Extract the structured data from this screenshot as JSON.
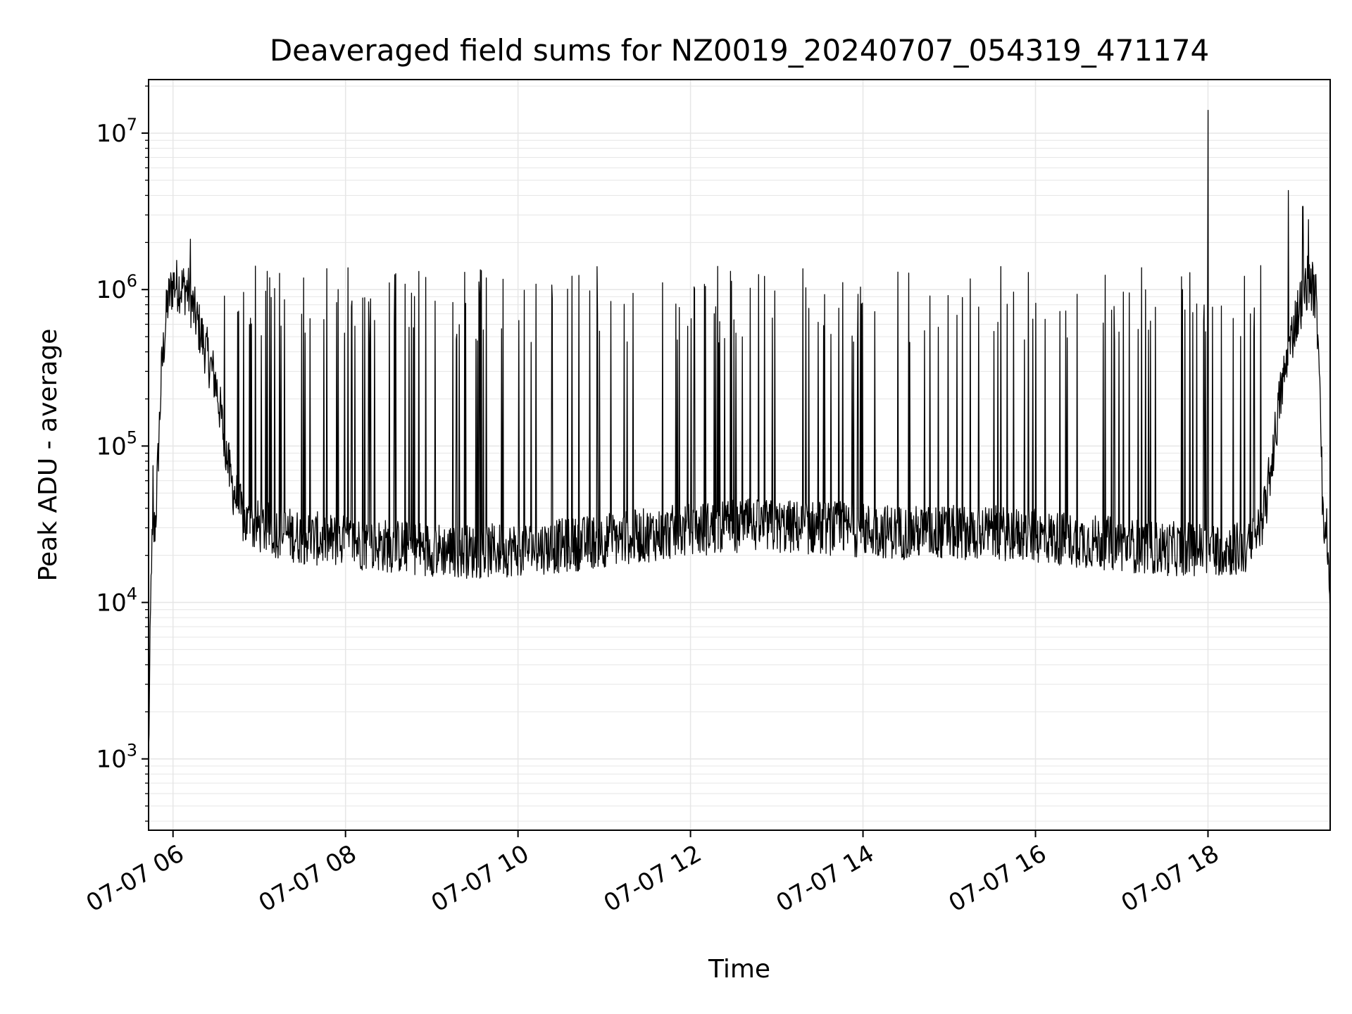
{
  "chart_data": {
    "type": "line",
    "title": "Deaveraged field sums for NZ0019_20240707_054319_471174",
    "xlabel": "Time",
    "ylabel": "Peak ADU - average",
    "xlim": [
      "2024-07-07 05:43",
      "2024-07-07 19:25"
    ],
    "ylim": [
      350,
      22000000
    ],
    "yscale": "log",
    "grid": true,
    "colors": {
      "line": "#000000",
      "grid": "#e6e6e6",
      "axes": "#000000"
    },
    "x_ticks": [
      {
        "t": "2024-07-07 06:00",
        "label": "07-07 06"
      },
      {
        "t": "2024-07-07 08:00",
        "label": "07-07 08"
      },
      {
        "t": "2024-07-07 10:00",
        "label": "07-07 10"
      },
      {
        "t": "2024-07-07 12:00",
        "label": "07-07 12"
      },
      {
        "t": "2024-07-07 14:00",
        "label": "07-07 14"
      },
      {
        "t": "2024-07-07 16:00",
        "label": "07-07 16"
      },
      {
        "t": "2024-07-07 18:00",
        "label": "07-07 18"
      }
    ],
    "y_ticks": [
      {
        "value": 1000,
        "base": "10",
        "exp": "3"
      },
      {
        "value": 10000,
        "base": "10",
        "exp": "4"
      },
      {
        "value": 100000,
        "base": "10",
        "exp": "5"
      },
      {
        "value": 1000000,
        "base": "10",
        "exp": "6"
      },
      {
        "value": 10000000,
        "base": "10",
        "exp": "7"
      }
    ],
    "series": [
      {
        "line_color": "#000000",
        "baseline": [
          {
            "t": "2024-07-07 05:43",
            "y": 1000
          },
          {
            "t": "2024-07-07 05:45",
            "y": 20000
          },
          {
            "t": "2024-07-07 05:48",
            "y": 35000
          },
          {
            "t": "2024-07-07 05:52",
            "y": 300000
          },
          {
            "t": "2024-07-07 05:56",
            "y": 800000
          },
          {
            "t": "2024-07-07 06:00",
            "y": 1100000
          },
          {
            "t": "2024-07-07 06:10",
            "y": 1000000
          },
          {
            "t": "2024-07-07 06:20",
            "y": 500000
          },
          {
            "t": "2024-07-07 06:30",
            "y": 250000
          },
          {
            "t": "2024-07-07 06:40",
            "y": 60000
          },
          {
            "t": "2024-07-07 06:50",
            "y": 32000
          },
          {
            "t": "2024-07-07 07:30",
            "y": 26000
          },
          {
            "t": "2024-07-07 08:30",
            "y": 23000
          },
          {
            "t": "2024-07-07 09:30",
            "y": 21000
          },
          {
            "t": "2024-07-07 10:30",
            "y": 23000
          },
          {
            "t": "2024-07-07 11:30",
            "y": 27000
          },
          {
            "t": "2024-07-07 12:30",
            "y": 31000
          },
          {
            "t": "2024-07-07 13:30",
            "y": 30000
          },
          {
            "t": "2024-07-07 14:30",
            "y": 28000
          },
          {
            "t": "2024-07-07 15:30",
            "y": 28000
          },
          {
            "t": "2024-07-07 16:30",
            "y": 25000
          },
          {
            "t": "2024-07-07 17:30",
            "y": 22000
          },
          {
            "t": "2024-07-07 18:30",
            "y": 22000
          },
          {
            "t": "2024-07-07 18:40",
            "y": 40000
          },
          {
            "t": "2024-07-07 18:50",
            "y": 200000
          },
          {
            "t": "2024-07-07 19:00",
            "y": 600000
          },
          {
            "t": "2024-07-07 19:10",
            "y": 1200000
          },
          {
            "t": "2024-07-07 19:15",
            "y": 900000
          },
          {
            "t": "2024-07-07 19:18",
            "y": 300000
          },
          {
            "t": "2024-07-07 19:20",
            "y": 30000
          },
          {
            "t": "2024-07-07 19:23",
            "y": 28000
          },
          {
            "t": "2024-07-07 19:25",
            "y": 8000
          }
        ],
        "spike_window": [
          "2024-07-07 06:35",
          "2024-07-07 18:40"
        ],
        "spike_level": 900000,
        "peaks": [
          {
            "t": "2024-07-07 06:12",
            "y": 2100000
          },
          {
            "t": "2024-07-07 18:00",
            "y": 14000000
          },
          {
            "t": "2024-07-07 18:56",
            "y": 4300000
          },
          {
            "t": "2024-07-07 19:06",
            "y": 3400000
          },
          {
            "t": "2024-07-07 19:10",
            "y": 2800000
          },
          {
            "t": "2024-07-07 05:46",
            "y": 75000
          }
        ]
      }
    ]
  }
}
